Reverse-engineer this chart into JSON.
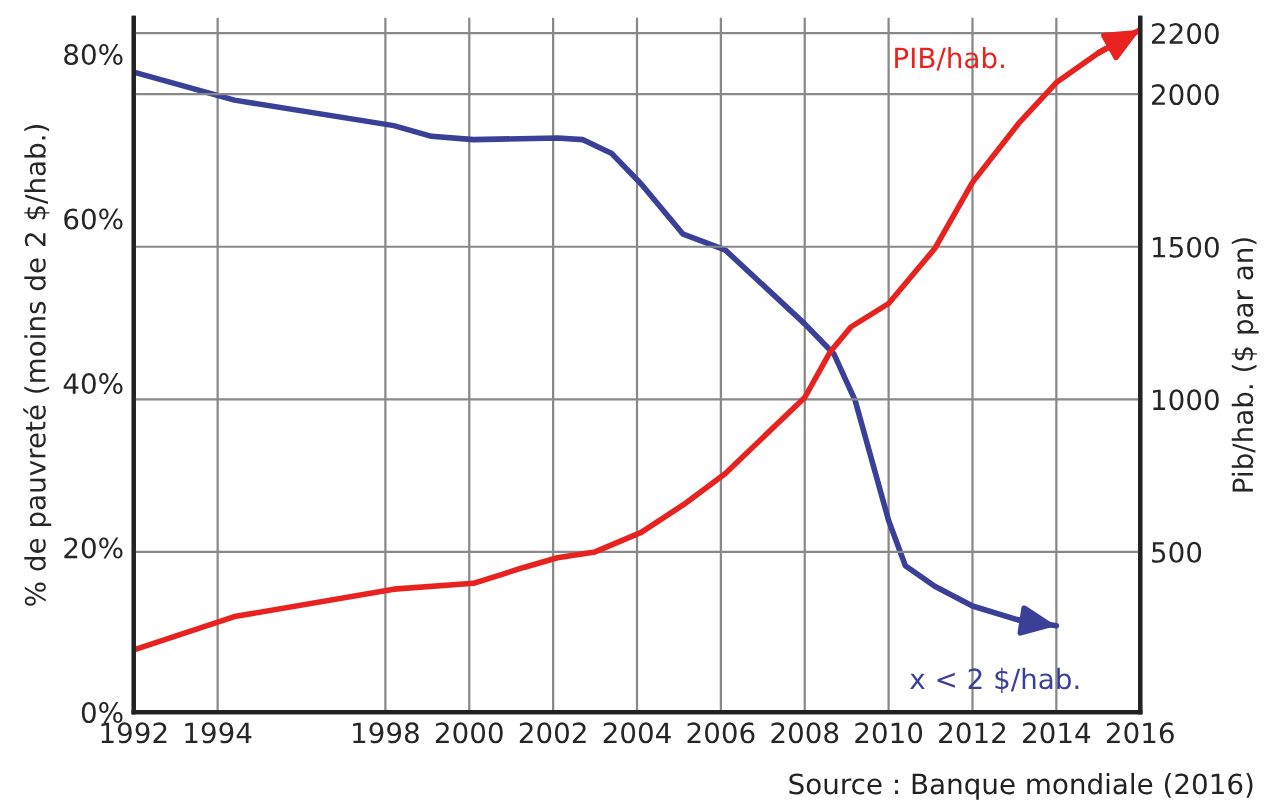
{
  "chart_data": {
    "type": "line",
    "xlim": [
      1992,
      2016
    ],
    "xticks": [
      1992,
      1994,
      1998,
      2000,
      2002,
      2004,
      2006,
      2008,
      2010,
      2012,
      2014,
      2016
    ],
    "ylim": [
      0,
      84.4
    ],
    "yticks": [
      {
        "value": 0,
        "label": "0%"
      },
      {
        "value": 20,
        "label": "20%"
      },
      {
        "value": 40,
        "label": "40%"
      },
      {
        "value": 60,
        "label": "60%"
      },
      {
        "value": 80,
        "label": "80%"
      }
    ],
    "y2lim": [
      -25,
      2250
    ],
    "y2ticks": [
      500,
      1000,
      1500,
      2000,
      2200
    ],
    "ylabel": "% de pauvreté (moins de 2 $/hab.)",
    "y2label": "Pib/hab. ($ par an)",
    "grid": true,
    "legend": false,
    "series": [
      {
        "name": "x < 2 $/hab.",
        "color": "#3a3f98",
        "axis": "y",
        "x": [
          1992,
          1994.4,
          1998.2,
          1999.1,
          2000.1,
          2002.1,
          2002.7,
          2003.4,
          2004.1,
          2005.1,
          2006.1,
          2008.0,
          2008.7,
          2009.2,
          2010.0,
          2010.4,
          2011.1,
          2012.0,
          2013.1,
          2014.0
        ],
        "values": [
          77.8,
          74.4,
          71.3,
          70.0,
          69.6,
          69.8,
          69.6,
          67.9,
          64.2,
          58.1,
          56.2,
          47.2,
          43.5,
          37.9,
          23.3,
          17.8,
          15.3,
          12.9,
          11.2,
          10.5
        ]
      },
      {
        "name": "PIB/hab.",
        "color": "#e8231f",
        "axis": "y2",
        "x": [
          1992,
          1994.4,
          1998.2,
          2000.1,
          2001.3,
          2002.1,
          2003.0,
          2004.1,
          2005.1,
          2006.1,
          2008.0,
          2008.6,
          2009.1,
          2010.0,
          2011.1,
          2012.0,
          2013.1,
          2014.0,
          2015.0,
          2016
        ],
        "values": [
          179,
          288,
          378,
          397,
          449,
          481,
          500,
          564,
          654,
          756,
          1006,
          1154,
          1237,
          1314,
          1494,
          1711,
          1904,
          2038,
          2135,
          2211
        ]
      }
    ],
    "annotations": [
      "Source : Banque mondiale (2016)"
    ]
  }
}
